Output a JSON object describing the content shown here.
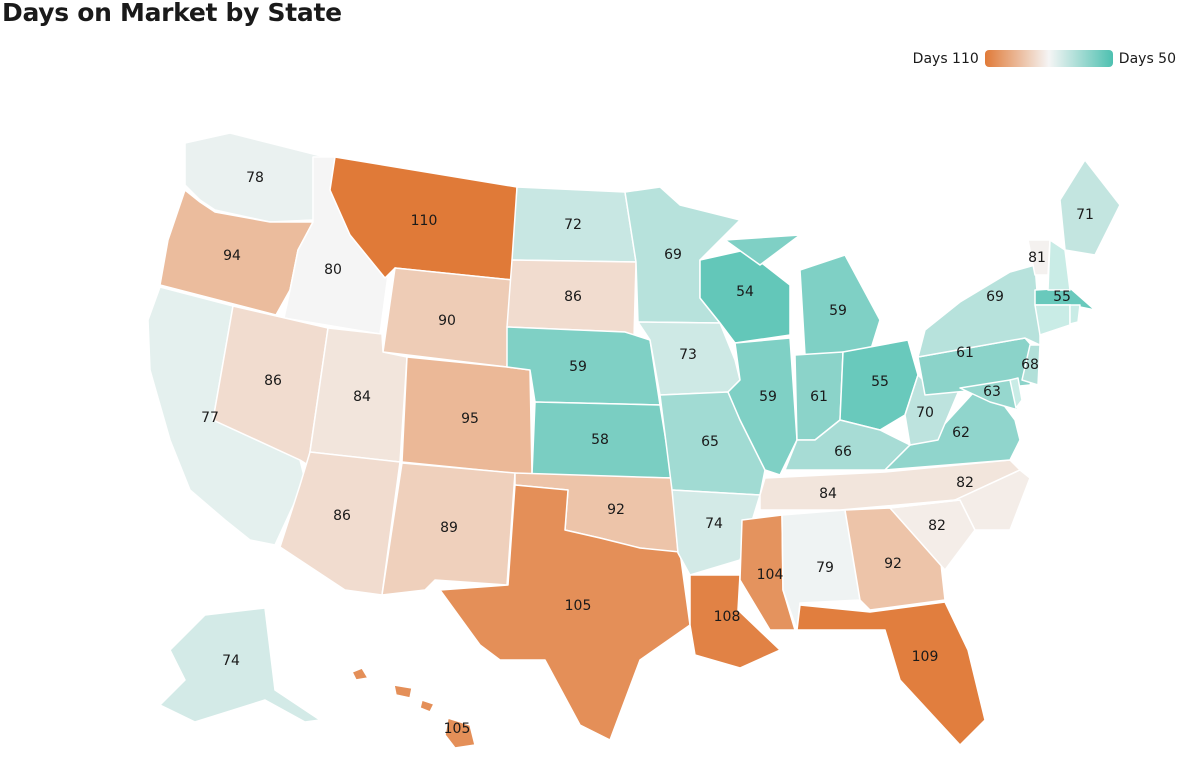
{
  "title": "Days on Market by State",
  "legend": {
    "min_label": "Days 110",
    "max_label": "Days 50",
    "high_color": "#e07a38",
    "mid_color": "#f5f5f5",
    "low_color": "#4dc0b0"
  },
  "map_data": {
    "metric": "Days on market",
    "domain_max": 110,
    "domain_min": 50,
    "states": [
      {
        "id": "WA",
        "value": 78
      },
      {
        "id": "OR",
        "value": 94
      },
      {
        "id": "CA",
        "value": 77
      },
      {
        "id": "ID",
        "value": 80
      },
      {
        "id": "NV",
        "value": 86
      },
      {
        "id": "MT",
        "value": 110
      },
      {
        "id": "WY",
        "value": 90
      },
      {
        "id": "UT",
        "value": 84
      },
      {
        "id": "AZ",
        "value": 86
      },
      {
        "id": "CO",
        "value": 95
      },
      {
        "id": "NM",
        "value": 89
      },
      {
        "id": "ND",
        "value": 72
      },
      {
        "id": "SD",
        "value": 86
      },
      {
        "id": "NE",
        "value": 59
      },
      {
        "id": "KS",
        "value": 58
      },
      {
        "id": "OK",
        "value": 92
      },
      {
        "id": "TX",
        "value": 105
      },
      {
        "id": "MN",
        "value": 69
      },
      {
        "id": "IA",
        "value": 73
      },
      {
        "id": "MO",
        "value": 65
      },
      {
        "id": "AR",
        "value": 74
      },
      {
        "id": "LA",
        "value": 108
      },
      {
        "id": "WI",
        "value": 54
      },
      {
        "id": "IL",
        "value": 59
      },
      {
        "id": "MI",
        "value": 59
      },
      {
        "id": "IN",
        "value": 61
      },
      {
        "id": "OH",
        "value": 55
      },
      {
        "id": "KY",
        "value": 66
      },
      {
        "id": "TN",
        "value": 84
      },
      {
        "id": "MS",
        "value": 104
      },
      {
        "id": "AL",
        "value": 79
      },
      {
        "id": "GA",
        "value": 92
      },
      {
        "id": "FL",
        "value": 109
      },
      {
        "id": "SC",
        "value": 82
      },
      {
        "id": "NC",
        "value": 82
      },
      {
        "id": "VA",
        "value": 62
      },
      {
        "id": "WV",
        "value": 70
      },
      {
        "id": "PA",
        "value": 61
      },
      {
        "id": "NY",
        "value": 69
      },
      {
        "id": "ME",
        "value": 71
      },
      {
        "id": "VT",
        "value": 81
      },
      {
        "id": "MA",
        "value": 55
      },
      {
        "id": "NJ",
        "value": 68
      },
      {
        "id": "MD",
        "value": 63
      },
      {
        "id": "AK",
        "value": 74
      },
      {
        "id": "HI",
        "value": 105
      },
      {
        "id": "NH",
        "value": null
      },
      {
        "id": "CT",
        "value": null
      },
      {
        "id": "RI",
        "value": null
      },
      {
        "id": "DE",
        "value": null
      }
    ]
  }
}
